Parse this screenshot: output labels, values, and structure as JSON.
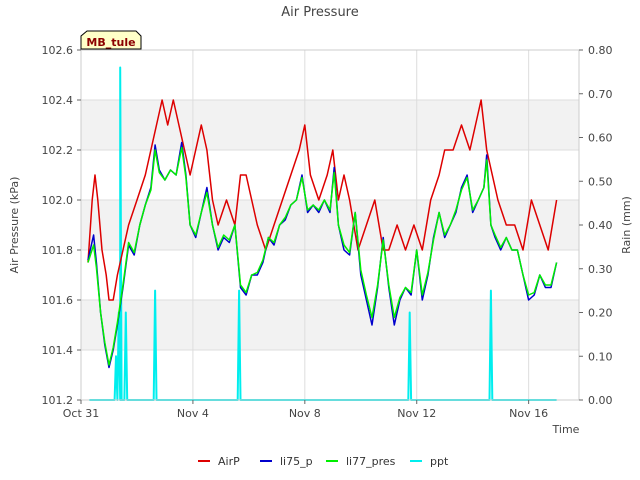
{
  "chart_data": {
    "type": "line",
    "title": "Air Pressure",
    "site_label": "MB_tule",
    "xlabel": "Time",
    "ylabel_left": "Air Pressure (kPa)",
    "ylabel_right": "Rain (mm)",
    "x_start": "2023-10-31",
    "x_end": "2023-11-17",
    "xlim_days": [
      0,
      17.8
    ],
    "ylim_left": [
      101.2,
      102.6
    ],
    "ylim_right": [
      0.0,
      0.8
    ],
    "x_ticks": [
      {
        "day": 0,
        "label": "Oct 31"
      },
      {
        "day": 4,
        "label": "Nov 4"
      },
      {
        "day": 8,
        "label": "Nov 8"
      },
      {
        "day": 12,
        "label": "Nov 12"
      },
      {
        "day": 16,
        "label": "Nov 16"
      }
    ],
    "y_ticks_left": [
      "101.2",
      "101.4",
      "101.6",
      "101.8",
      "102.0",
      "102.2",
      "102.4",
      "102.6"
    ],
    "y_ticks_right": [
      "0.00",
      "0.10",
      "0.20",
      "0.30",
      "0.40",
      "0.50",
      "0.60",
      "0.70",
      "0.80"
    ],
    "grid": true,
    "legend_position": "bottom-center",
    "series": [
      {
        "name": "AirP",
        "axis": "left",
        "color": "#dd0000",
        "points": [
          [
            0.25,
            101.75
          ],
          [
            0.4,
            102.0
          ],
          [
            0.5,
            102.1
          ],
          [
            0.6,
            102.0
          ],
          [
            0.75,
            101.8
          ],
          [
            0.9,
            101.7
          ],
          [
            1.0,
            101.6
          ],
          [
            1.15,
            101.6
          ],
          [
            1.3,
            101.7
          ],
          [
            1.5,
            101.8
          ],
          [
            1.7,
            101.9
          ],
          [
            2.0,
            102.0
          ],
          [
            2.3,
            102.1
          ],
          [
            2.5,
            102.2
          ],
          [
            2.7,
            102.3
          ],
          [
            2.9,
            102.4
          ],
          [
            3.1,
            102.3
          ],
          [
            3.3,
            102.4
          ],
          [
            3.5,
            102.3
          ],
          [
            3.7,
            102.2
          ],
          [
            3.9,
            102.1
          ],
          [
            4.1,
            102.2
          ],
          [
            4.3,
            102.3
          ],
          [
            4.5,
            102.2
          ],
          [
            4.7,
            102.0
          ],
          [
            4.9,
            101.9
          ],
          [
            5.2,
            102.0
          ],
          [
            5.5,
            101.9
          ],
          [
            5.7,
            102.1
          ],
          [
            5.9,
            102.1
          ],
          [
            6.1,
            102.0
          ],
          [
            6.3,
            101.9
          ],
          [
            6.6,
            101.8
          ],
          [
            6.9,
            101.9
          ],
          [
            7.2,
            102.0
          ],
          [
            7.5,
            102.1
          ],
          [
            7.8,
            102.2
          ],
          [
            8.0,
            102.3
          ],
          [
            8.2,
            102.1
          ],
          [
            8.5,
            102.0
          ],
          [
            8.8,
            102.1
          ],
          [
            9.0,
            102.2
          ],
          [
            9.2,
            102.0
          ],
          [
            9.4,
            102.1
          ],
          [
            9.6,
            102.0
          ],
          [
            9.9,
            101.8
          ],
          [
            10.2,
            101.9
          ],
          [
            10.5,
            102.0
          ],
          [
            10.8,
            101.8
          ],
          [
            11.0,
            101.8
          ],
          [
            11.3,
            101.9
          ],
          [
            11.6,
            101.8
          ],
          [
            11.9,
            101.9
          ],
          [
            12.2,
            101.8
          ],
          [
            12.5,
            102.0
          ],
          [
            12.8,
            102.1
          ],
          [
            13.0,
            102.2
          ],
          [
            13.3,
            102.2
          ],
          [
            13.6,
            102.3
          ],
          [
            13.9,
            102.2
          ],
          [
            14.1,
            102.3
          ],
          [
            14.3,
            102.4
          ],
          [
            14.5,
            102.2
          ],
          [
            14.7,
            102.1
          ],
          [
            14.9,
            102.0
          ],
          [
            15.2,
            101.9
          ],
          [
            15.5,
            101.9
          ],
          [
            15.8,
            101.8
          ],
          [
            16.1,
            102.0
          ],
          [
            16.4,
            101.9
          ],
          [
            16.7,
            101.8
          ],
          [
            17.0,
            102.0
          ]
        ]
      },
      {
        "name": "li75_p",
        "axis": "left",
        "color": "#0000cc",
        "points": [
          [
            0.25,
            101.76
          ],
          [
            0.45,
            101.86
          ],
          [
            0.55,
            101.75
          ],
          [
            0.7,
            101.55
          ],
          [
            0.85,
            101.42
          ],
          [
            1.0,
            101.33
          ],
          [
            1.15,
            101.4
          ],
          [
            1.3,
            101.5
          ],
          [
            1.5,
            101.65
          ],
          [
            1.7,
            101.82
          ],
          [
            1.9,
            101.78
          ],
          [
            2.1,
            101.9
          ],
          [
            2.3,
            101.98
          ],
          [
            2.5,
            102.05
          ],
          [
            2.65,
            102.22
          ],
          [
            2.8,
            102.12
          ],
          [
            3.0,
            102.08
          ],
          [
            3.2,
            102.12
          ],
          [
            3.4,
            102.1
          ],
          [
            3.6,
            102.23
          ],
          [
            3.75,
            102.1
          ],
          [
            3.9,
            101.9
          ],
          [
            4.1,
            101.85
          ],
          [
            4.3,
            101.95
          ],
          [
            4.5,
            102.05
          ],
          [
            4.7,
            101.9
          ],
          [
            4.9,
            101.8
          ],
          [
            5.1,
            101.85
          ],
          [
            5.3,
            101.83
          ],
          [
            5.5,
            101.9
          ],
          [
            5.7,
            101.65
          ],
          [
            5.9,
            101.62
          ],
          [
            6.1,
            101.7
          ],
          [
            6.3,
            101.7
          ],
          [
            6.5,
            101.75
          ],
          [
            6.7,
            101.85
          ],
          [
            6.9,
            101.82
          ],
          [
            7.1,
            101.9
          ],
          [
            7.3,
            101.92
          ],
          [
            7.5,
            101.98
          ],
          [
            7.7,
            102.0
          ],
          [
            7.9,
            102.1
          ],
          [
            8.1,
            101.95
          ],
          [
            8.3,
            101.98
          ],
          [
            8.5,
            101.95
          ],
          [
            8.7,
            102.0
          ],
          [
            8.9,
            101.95
          ],
          [
            9.05,
            102.13
          ],
          [
            9.2,
            101.9
          ],
          [
            9.4,
            101.8
          ],
          [
            9.6,
            101.78
          ],
          [
            9.8,
            101.95
          ],
          [
            10.0,
            101.7
          ],
          [
            10.2,
            101.6
          ],
          [
            10.4,
            101.5
          ],
          [
            10.6,
            101.65
          ],
          [
            10.8,
            101.85
          ],
          [
            11.0,
            101.65
          ],
          [
            11.2,
            101.5
          ],
          [
            11.4,
            101.6
          ],
          [
            11.6,
            101.65
          ],
          [
            11.8,
            101.62
          ],
          [
            12.0,
            101.8
          ],
          [
            12.2,
            101.6
          ],
          [
            12.4,
            101.7
          ],
          [
            12.6,
            101.85
          ],
          [
            12.8,
            101.95
          ],
          [
            13.0,
            101.85
          ],
          [
            13.2,
            101.9
          ],
          [
            13.4,
            101.95
          ],
          [
            13.6,
            102.05
          ],
          [
            13.8,
            102.1
          ],
          [
            14.0,
            101.95
          ],
          [
            14.2,
            102.0
          ],
          [
            14.4,
            102.05
          ],
          [
            14.5,
            102.18
          ],
          [
            14.65,
            101.9
          ],
          [
            14.8,
            101.85
          ],
          [
            15.0,
            101.8
          ],
          [
            15.2,
            101.85
          ],
          [
            15.4,
            101.8
          ],
          [
            15.6,
            101.8
          ],
          [
            15.8,
            101.7
          ],
          [
            16.0,
            101.6
          ],
          [
            16.2,
            101.62
          ],
          [
            16.4,
            101.7
          ],
          [
            16.6,
            101.65
          ],
          [
            16.8,
            101.65
          ],
          [
            17.0,
            101.75
          ]
        ]
      },
      {
        "name": "li77_pres",
        "axis": "left",
        "color": "#00ee00",
        "points": [
          [
            0.25,
            101.75
          ],
          [
            0.45,
            101.82
          ],
          [
            0.55,
            101.73
          ],
          [
            0.7,
            101.55
          ],
          [
            0.85,
            101.43
          ],
          [
            1.0,
            101.34
          ],
          [
            1.15,
            101.41
          ],
          [
            1.3,
            101.51
          ],
          [
            1.5,
            101.66
          ],
          [
            1.7,
            101.83
          ],
          [
            1.9,
            101.79
          ],
          [
            2.1,
            101.9
          ],
          [
            2.3,
            101.98
          ],
          [
            2.5,
            102.04
          ],
          [
            2.65,
            102.2
          ],
          [
            2.8,
            102.11
          ],
          [
            3.0,
            102.08
          ],
          [
            3.2,
            102.12
          ],
          [
            3.4,
            102.1
          ],
          [
            3.6,
            102.21
          ],
          [
            3.75,
            102.09
          ],
          [
            3.9,
            101.9
          ],
          [
            4.1,
            101.86
          ],
          [
            4.3,
            101.95
          ],
          [
            4.5,
            102.03
          ],
          [
            4.7,
            101.9
          ],
          [
            4.9,
            101.81
          ],
          [
            5.1,
            101.86
          ],
          [
            5.3,
            101.84
          ],
          [
            5.5,
            101.9
          ],
          [
            5.7,
            101.66
          ],
          [
            5.9,
            101.63
          ],
          [
            6.1,
            101.7
          ],
          [
            6.3,
            101.71
          ],
          [
            6.5,
            101.76
          ],
          [
            6.7,
            101.85
          ],
          [
            6.9,
            101.83
          ],
          [
            7.1,
            101.9
          ],
          [
            7.3,
            101.93
          ],
          [
            7.5,
            101.98
          ],
          [
            7.7,
            102.0
          ],
          [
            7.9,
            102.09
          ],
          [
            8.1,
            101.96
          ],
          [
            8.3,
            101.98
          ],
          [
            8.5,
            101.96
          ],
          [
            8.7,
            102.0
          ],
          [
            8.9,
            101.96
          ],
          [
            9.05,
            102.11
          ],
          [
            9.2,
            101.9
          ],
          [
            9.4,
            101.82
          ],
          [
            9.6,
            101.79
          ],
          [
            9.8,
            101.95
          ],
          [
            10.0,
            101.72
          ],
          [
            10.2,
            101.62
          ],
          [
            10.4,
            101.53
          ],
          [
            10.6,
            101.66
          ],
          [
            10.8,
            101.84
          ],
          [
            11.0,
            101.66
          ],
          [
            11.2,
            101.53
          ],
          [
            11.4,
            101.61
          ],
          [
            11.6,
            101.65
          ],
          [
            11.8,
            101.63
          ],
          [
            12.0,
            101.8
          ],
          [
            12.2,
            101.62
          ],
          [
            12.4,
            101.71
          ],
          [
            12.6,
            101.84
          ],
          [
            12.8,
            101.95
          ],
          [
            13.0,
            101.86
          ],
          [
            13.2,
            101.9
          ],
          [
            13.4,
            101.96
          ],
          [
            13.6,
            102.04
          ],
          [
            13.8,
            102.09
          ],
          [
            14.0,
            101.96
          ],
          [
            14.2,
            102.0
          ],
          [
            14.4,
            102.05
          ],
          [
            14.5,
            102.16
          ],
          [
            14.65,
            101.9
          ],
          [
            14.8,
            101.86
          ],
          [
            15.0,
            101.81
          ],
          [
            15.2,
            101.85
          ],
          [
            15.4,
            101.8
          ],
          [
            15.6,
            101.8
          ],
          [
            15.8,
            101.7
          ],
          [
            16.0,
            101.62
          ],
          [
            16.2,
            101.63
          ],
          [
            16.4,
            101.7
          ],
          [
            16.6,
            101.66
          ],
          [
            16.8,
            101.66
          ],
          [
            17.0,
            101.75
          ]
        ]
      },
      {
        "name": "ppt",
        "axis": "right",
        "color": "#00eeee",
        "points": [
          [
            0.3,
            0.0
          ],
          [
            1.2,
            0.0
          ],
          [
            1.25,
            0.1
          ],
          [
            1.3,
            0.0
          ],
          [
            1.35,
            0.2
          ],
          [
            1.4,
            0.0
          ],
          [
            1.4,
            0.76
          ],
          [
            1.45,
            0.0
          ],
          [
            1.55,
            0.0
          ],
          [
            1.6,
            0.2
          ],
          [
            1.65,
            0.0
          ],
          [
            2.6,
            0.0
          ],
          [
            2.65,
            0.25
          ],
          [
            2.7,
            0.0
          ],
          [
            5.6,
            0.0
          ],
          [
            5.65,
            0.25
          ],
          [
            5.7,
            0.0
          ],
          [
            11.7,
            0.0
          ],
          [
            11.75,
            0.2
          ],
          [
            11.8,
            0.0
          ],
          [
            14.6,
            0.0
          ],
          [
            14.65,
            0.25
          ],
          [
            14.7,
            0.0
          ],
          [
            17.0,
            0.0
          ]
        ]
      }
    ]
  }
}
